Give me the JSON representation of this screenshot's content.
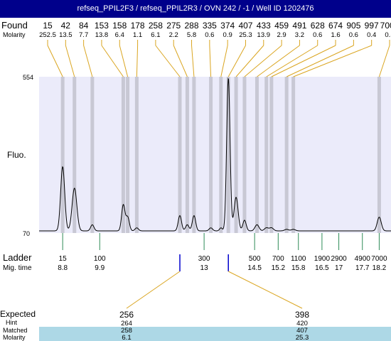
{
  "title": "refseq_PPIL2F3 / refseq_PPIL2R3 / OVN 242 / -1 / Well ID 1202476",
  "labels": {
    "found": "Found",
    "molarity": "Molarity",
    "fluo": "Fluo.",
    "ladder": "Ladder",
    "mig_time": "Mig. time",
    "expected": "Expected",
    "hint": "Hint",
    "matched": "Matched",
    "molarity_bottom": "Molarity"
  },
  "chart_data": {
    "type": "line",
    "ylim": [
      70,
      554
    ],
    "y_ticks": [
      "554",
      "70"
    ],
    "found_peaks": [
      {
        "size": "15",
        "molarity": "252.5",
        "t": 8.8
      },
      {
        "size": "42",
        "molarity": "13.5",
        "t": 9.15
      },
      {
        "size": "84",
        "molarity": "7.7",
        "t": 9.68
      },
      {
        "size": "153",
        "molarity": "13.8",
        "t": 10.6
      },
      {
        "size": "158",
        "molarity": "6.4",
        "t": 10.73
      },
      {
        "size": "178",
        "molarity": "1.1",
        "t": 11.0
      },
      {
        "size": "258",
        "molarity": "6.1",
        "t": 12.28
      },
      {
        "size": "275",
        "molarity": "2.2",
        "t": 12.5
      },
      {
        "size": "288",
        "molarity": "5.8",
        "t": 12.7
      },
      {
        "size": "335",
        "molarity": "0.6",
        "t": 13.2
      },
      {
        "size": "374",
        "molarity": "0.9",
        "t": 13.5
      },
      {
        "size": "407",
        "molarity": "25.3",
        "t": 13.72
      },
      {
        "size": "433",
        "molarity": "13.9",
        "t": 13.95
      },
      {
        "size": "459",
        "molarity": "2.9",
        "t": 14.2
      },
      {
        "size": "491",
        "molarity": "3.2",
        "t": 14.57
      },
      {
        "size": "628",
        "molarity": "0.6",
        "t": 14.85
      },
      {
        "size": "674",
        "molarity": "1.6",
        "t": 15.0
      },
      {
        "size": "905",
        "molarity": "0.6",
        "t": 15.45
      },
      {
        "size": "997",
        "molarity": "0.4",
        "t": 15.65
      },
      {
        "size": "7000",
        "molarity": "0.5",
        "t": 18.2
      }
    ],
    "ladder": [
      {
        "size": "15",
        "mig_time": "8.8",
        "t": 8.8
      },
      {
        "size": "100",
        "mig_time": "9.9",
        "t": 9.9
      },
      {
        "size": "300",
        "mig_time": "13",
        "t": 13.0
      },
      {
        "size": "500",
        "mig_time": "14.5",
        "t": 14.5
      },
      {
        "size": "700",
        "mig_time": "15.2",
        "t": 15.2
      },
      {
        "size": "1100",
        "mig_time": "15.8",
        "t": 15.8
      },
      {
        "size": "1900",
        "mig_time": "16.5",
        "t": 16.5
      },
      {
        "size": "2900",
        "mig_time": "17",
        "t": 17.0
      },
      {
        "size": "4900",
        "mig_time": "17.7",
        "t": 17.7
      },
      {
        "size": "7000",
        "mig_time": "18.2",
        "t": 18.2
      }
    ],
    "expected": [
      {
        "size": "256",
        "hint": "264",
        "matched": "258",
        "molarity": "6.1",
        "t": 12.28
      },
      {
        "size": "398",
        "hint": "420",
        "matched": "407",
        "molarity": "25.3",
        "t": 13.72
      }
    ],
    "trace_peaks": [
      {
        "t": 8.8,
        "h": 0.42,
        "w": 0.06
      },
      {
        "t": 9.15,
        "h": 0.28,
        "w": 0.07
      },
      {
        "t": 9.68,
        "h": 0.04,
        "w": 0.05
      },
      {
        "t": 10.6,
        "h": 0.17,
        "w": 0.05
      },
      {
        "t": 10.73,
        "h": 0.09,
        "w": 0.05
      },
      {
        "t": 11.0,
        "h": 0.02,
        "w": 0.05
      },
      {
        "t": 12.28,
        "h": 0.1,
        "w": 0.05
      },
      {
        "t": 12.5,
        "h": 0.04,
        "w": 0.05
      },
      {
        "t": 12.7,
        "h": 0.1,
        "w": 0.05
      },
      {
        "t": 13.2,
        "h": 0.02,
        "w": 0.05
      },
      {
        "t": 13.5,
        "h": 0.02,
        "w": 0.04
      },
      {
        "t": 13.72,
        "h": 1.0,
        "w": 0.05
      },
      {
        "t": 13.95,
        "h": 0.22,
        "w": 0.06
      },
      {
        "t": 14.2,
        "h": 0.07,
        "w": 0.05
      },
      {
        "t": 14.57,
        "h": 0.04,
        "w": 0.06
      },
      {
        "t": 14.85,
        "h": 0.02,
        "w": 0.06
      },
      {
        "t": 15.0,
        "h": 0.02,
        "w": 0.06
      },
      {
        "t": 15.45,
        "h": 0.01,
        "w": 0.06
      },
      {
        "t": 15.65,
        "h": 0.01,
        "w": 0.06
      },
      {
        "t": 18.2,
        "h": 0.09,
        "w": 0.06
      }
    ],
    "colors": {
      "header": "#00008b",
      "plot_bg": "#ebebfa",
      "band": "#c8c8d4",
      "found_line": "#daa520",
      "ladder_line": "#2e8b57",
      "expected_mark": "#0000cd",
      "matched_bg": "#add8e6"
    }
  }
}
